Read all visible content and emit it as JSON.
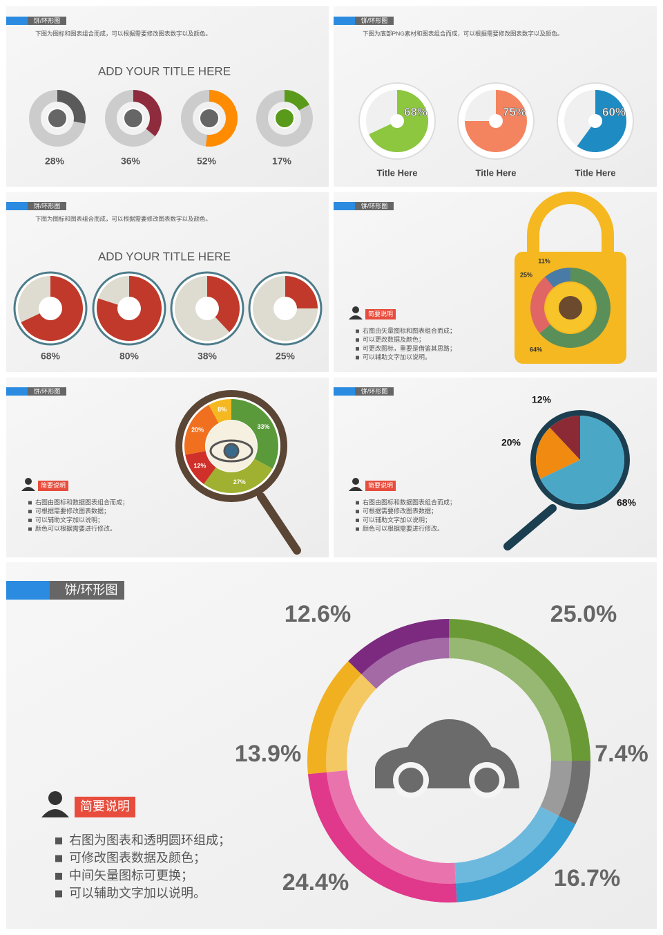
{
  "slides": [
    {
      "tag": "饼/环形图",
      "note": "下图为图标和图表组合而成，可以根据需要修改图表数字以及颜色。",
      "title": "ADD YOUR TITLE HERE",
      "chart": {
        "type": "donut",
        "values": [
          28,
          36,
          52,
          17
        ],
        "value_labels": [
          "28%",
          "36%",
          "52%",
          "17%"
        ],
        "colors": [
          "#5a5a5a",
          "#8e2b3d",
          "#ff8c00",
          "#5a9a1a"
        ]
      }
    },
    {
      "tag": "饼/环形图",
      "note": "下图为底部PNG素材和图表组合而成，可以根据需要修改图表数字以及颜色。",
      "chart": {
        "type": "pie",
        "values": [
          68,
          75,
          60
        ],
        "value_labels": [
          "68%",
          "75%",
          "60%"
        ],
        "names": [
          "Title Here",
          "Title Here",
          "Title Here"
        ],
        "colors": [
          "#8dc63f",
          "#f4845f",
          "#1e8bc3"
        ]
      }
    },
    {
      "tag": "饼/环形图",
      "note": "下图为图标和图表组合而成，可以根据需要修改图表数字以及颜色。",
      "title": "ADD YOUR TITLE HERE",
      "chart": {
        "type": "pie",
        "values": [
          68,
          80,
          38,
          25
        ],
        "value_labels": [
          "68%",
          "80%",
          "38%",
          "25%"
        ],
        "color": "#c0392b"
      }
    },
    {
      "tag": "饼/环形图",
      "badge": "简要说明",
      "bullets": [
        "右图由矢量图标和图表组合而成；",
        "可以更改数据及颜色；",
        "可更改图标，重要是借鉴其思路；",
        "可以辅助文字加以说明。"
      ],
      "chart": {
        "type": "donut",
        "values": [
          64,
          25,
          11
        ],
        "value_labels": [
          "64%",
          "25%",
          "11%"
        ],
        "colors": [
          "#5a8f5a",
          "#e06666",
          "#4a7ba6"
        ]
      }
    },
    {
      "tag": "饼/环形图",
      "badge": "简要说明",
      "bullets": [
        "右图由图标和数据图表组合而成；",
        "可根据需要修改图表数据；",
        "可以辅助文字加以说明；",
        "颜色可以根据需要进行修改。"
      ],
      "chart": {
        "type": "donut",
        "values": [
          33,
          27,
          12,
          20,
          8
        ],
        "value_labels": [
          "33%",
          "27%",
          "12%",
          "20%",
          "8%"
        ],
        "colors": [
          "#5a9a3a",
          "#a0b030",
          "#d0302a",
          "#f07020",
          "#f5b820"
        ]
      }
    },
    {
      "tag": "饼/环形图",
      "badge": "简要说明",
      "bullets": [
        "右图由图标和数据图表组合而成；",
        "可根据需要修改图表数据；",
        "可以辅助文字加以说明；",
        "颜色可以根据需要进行修改。"
      ],
      "chart": {
        "type": "pie",
        "values": [
          68,
          20,
          12
        ],
        "value_labels": [
          "68%",
          "20%",
          "12%"
        ],
        "colors": [
          "#4aa8c6",
          "#f08a10",
          "#8b2a35"
        ]
      }
    },
    {
      "tag": "饼/环形图",
      "badge": "简要说明",
      "bullets": [
        "右图为图表和透明圆环组成；",
        "可修改图表数据及颜色；",
        "中间矢量图标可更换；",
        "可以辅助文字加以说明。"
      ],
      "chart": {
        "type": "donut",
        "values": [
          25,
          7.4,
          16.7,
          24.4,
          13.9,
          12.6
        ],
        "value_labels": [
          "25.0%",
          "7.4%",
          "16.7%",
          "24.4%",
          "13.9%",
          "12.6%"
        ],
        "colors": [
          "#6a9a35",
          "#707070",
          "#2f9bd0",
          "#e0388a",
          "#f0b020",
          "#7b2a7f"
        ]
      }
    }
  ]
}
